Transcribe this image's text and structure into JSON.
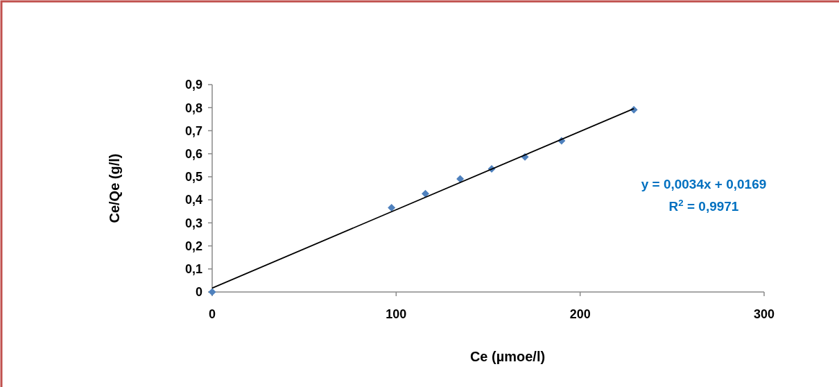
{
  "chart_data": {
    "type": "scatter",
    "xlabel": "Ce (µmoe/l)",
    "ylabel": "Ce/Qe (g/l)",
    "xlim": [
      0,
      300
    ],
    "xticks": [
      0,
      100,
      200,
      300
    ],
    "ylim": [
      0,
      0.9
    ],
    "yticks": [
      0,
      {
        "value": 0.1,
        "label": "0,1"
      },
      {
        "value": 0.2,
        "label": "0,2"
      },
      {
        "value": 0.3,
        "label": "0,3"
      },
      {
        "value": 0.4,
        "label": "0,4"
      },
      {
        "value": 0.5,
        "label": "0,5"
      },
      {
        "value": 0.6,
        "label": "0,6"
      },
      {
        "value": 0.7,
        "label": "0,7"
      },
      {
        "value": 0.8,
        "label": "0,8"
      },
      {
        "value": 0.9,
        "label": "0,9"
      }
    ],
    "marker": "diamond",
    "series": [
      {
        "color": "#4f81bd",
        "x": [
          0,
          97.5,
          115.9,
          134.8,
          151.9,
          170,
          189.9,
          229.2
        ],
        "values": [
          0,
          0.366,
          0.427,
          0.491,
          0.534,
          0.586,
          0.656,
          0.791
        ]
      },
      {
        "type": "line",
        "color": "#000000",
        "marker": "none",
        "line_style": "solid",
        "x": [
          0,
          229.2
        ],
        "values": [
          0.017,
          0.796
        ]
      }
    ],
    "annotations": [
      "y = 0,0034x + 0,0169",
      "R$^{2}$ = 0,9971"
    ]
  }
}
